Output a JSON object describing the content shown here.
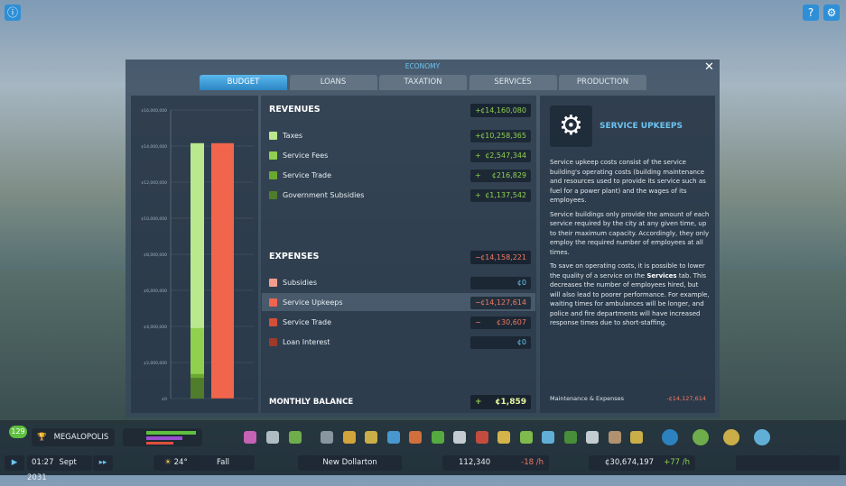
{
  "header": {
    "title": "ECONOMY",
    "tabs": [
      "BUDGET",
      "LOANS",
      "TAXATION",
      "SERVICES",
      "PRODUCTION"
    ],
    "active_tab": 0
  },
  "budget_chart": {
    "type": "bar",
    "ylim": [
      0,
      16000000
    ],
    "yticks": [
      {
        "value": 0,
        "label": "¢0"
      },
      {
        "value": 2000000,
        "label": "¢2,000,000"
      },
      {
        "value": 4000000,
        "label": "¢4,000,000"
      },
      {
        "value": 6000000,
        "label": "¢6,000,000"
      },
      {
        "value": 8000000,
        "label": "¢8,000,000"
      },
      {
        "value": 10000000,
        "label": "¢10,000,000"
      },
      {
        "value": 12000000,
        "label": "¢12,000,000"
      },
      {
        "value": 14000000,
        "label": "¢14,000,000"
      },
      {
        "value": 16000000,
        "label": "¢16,000,000"
      }
    ]
  },
  "revenues": {
    "title": "REVENUES",
    "total_sign": "+",
    "total": "¢14,160,080",
    "items": [
      {
        "name": "Taxes",
        "sign": "+",
        "value": 10258365,
        "value_label": "¢10,258,365",
        "color": "#b9e88f"
      },
      {
        "name": "Service Fees",
        "sign": "+",
        "value": 2547344,
        "value_label": "¢2,547,344",
        "color": "#8fd14f"
      },
      {
        "name": "Service Trade",
        "sign": "+",
        "value": 216829,
        "value_label": "¢216,829",
        "color": "#6aa92f"
      },
      {
        "name": "Government Subsidies",
        "sign": "+",
        "value": 1137542,
        "value_label": "¢1,137,542",
        "color": "#4f7d2b"
      }
    ]
  },
  "expenses": {
    "title": "EXPENSES",
    "total_sign": "−",
    "total": "¢14,158,221",
    "items": [
      {
        "name": "Subsidies",
        "sign": null,
        "value": 0,
        "value_label": "¢0",
        "color": "#f59d8d"
      },
      {
        "name": "Service Upkeeps",
        "sign": "−",
        "value": 14127614,
        "value_label": "¢14,127,614",
        "color": "#f2654d"
      },
      {
        "name": "Service Trade",
        "sign": "−",
        "value": 30607,
        "value_label": "¢30,607",
        "color": "#d44f39"
      },
      {
        "name": "Loan Interest",
        "sign": null,
        "value": 0,
        "value_label": "¢0",
        "color": "#9e3a2a"
      }
    ]
  },
  "balance": {
    "label": "MONTHLY BALANCE",
    "sign": "+",
    "value": "¢1,859"
  },
  "info": {
    "title": "SERVICE UPKEEPS",
    "paragraphs": [
      [
        "Service upkeep costs consist of the service building's operating costs (building maintenance and resources used to provide its service such as fuel for a power plant) and the wages of its employees."
      ],
      [
        "Service buildings only provide the amount of each service required by the city at any given time, up to their maximum capacity. Accordingly, they only employ the required number of employees at all times."
      ],
      [
        "To save on operating costs, it is possible to lower the quality of a service on the ",
        "Services",
        " tab. This decreases the number of employees hired, but will also lead to poorer performance. For example, waiting times for ambulances will be longer, and police and fire departments will have increased response times due to short-staffing."
      ]
    ],
    "footer_label": "Maintenance & Expenses",
    "footer_value": "-¢14,127,614"
  },
  "toolbar": {
    "level": "129",
    "milestone": "MEGALOPOLIS",
    "time": "01:27",
    "date": "Sept 2031",
    "temperature": "24°",
    "season": "Fall",
    "city": "New Dollarton",
    "population": "112,340",
    "population_rate": "-18 /h",
    "money": "¢30,674,197",
    "money_rate": "+77 /h"
  }
}
